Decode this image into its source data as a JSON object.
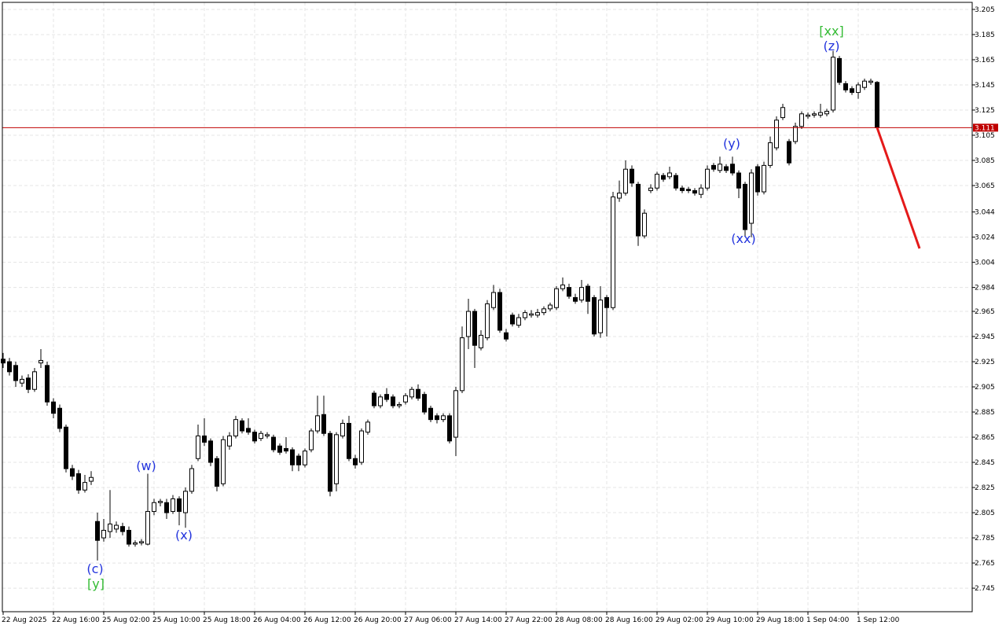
{
  "chart_data": {
    "type": "candlestick",
    "categories": [
      "22 Aug 2025",
      null,
      null,
      null,
      null,
      null,
      null,
      null,
      "22 Aug 16:00",
      null,
      null,
      null,
      null,
      null,
      null,
      null,
      "25 Aug 02:00",
      null,
      null,
      null,
      null,
      null,
      null,
      null,
      "25 Aug 10:00",
      null,
      null,
      null,
      null,
      null,
      null,
      null,
      "25 Aug 18:00",
      null,
      null,
      null,
      null,
      null,
      null,
      null,
      "26 Aug 04:00",
      null,
      null,
      null,
      null,
      null,
      null,
      null,
      "26 Aug 12:00",
      null,
      null,
      null,
      null,
      null,
      null,
      null,
      "26 Aug 20:00",
      null,
      null,
      null,
      null,
      null,
      null,
      null,
      "27 Aug 06:00",
      null,
      null,
      null,
      null,
      null,
      null,
      null,
      "27 Aug 14:00",
      null,
      null,
      null,
      null,
      null,
      null,
      null,
      "27 Aug 22:00",
      null,
      null,
      null,
      null,
      null,
      null,
      null,
      "28 Aug 08:00",
      null,
      null,
      null,
      null,
      null,
      null,
      null,
      "28 Aug 16:00",
      null,
      null,
      null,
      null,
      null,
      null,
      null,
      "29 Aug 02:00",
      null,
      null,
      null,
      null,
      null,
      null,
      null,
      "29 Aug 10:00",
      null,
      null,
      null,
      null,
      null,
      null,
      null,
      "29 Aug 18:00",
      null,
      null,
      null,
      null,
      null,
      null,
      null,
      "1 Sep 04:00",
      null,
      null,
      null,
      null,
      null,
      null,
      null,
      "1 Sep 12:00",
      null,
      null,
      null
    ],
    "open": [
      2.927,
      2.925,
      2.922,
      2.908,
      2.912,
      2.903,
      2.924,
      2.922,
      2.893,
      2.888,
      2.873,
      2.84,
      2.836,
      2.823,
      2.83,
      2.798,
      2.785,
      2.79,
      2.792,
      2.794,
      2.791,
      2.78,
      2.781,
      2.78,
      2.806,
      2.813,
      2.813,
      2.806,
      2.816,
      2.805,
      2.822,
      2.848,
      2.866,
      2.862,
      2.848,
      2.828,
      2.858,
      2.866,
      2.878,
      2.872,
      2.869,
      2.864,
      2.866,
      2.865,
      2.858,
      2.856,
      2.855,
      2.85,
      2.843,
      2.855,
      2.87,
      2.883,
      2.868,
      2.828,
      2.866,
      2.876,
      2.848,
      2.845,
      2.869,
      2.9,
      2.89,
      2.899,
      2.897,
      2.89,
      2.893,
      2.897,
      2.903,
      2.899,
      2.888,
      2.882,
      2.879,
      2.882,
      2.865,
      2.902,
      2.945,
      2.965,
      2.936,
      2.944,
      2.968,
      2.98,
      2.948,
      2.962,
      2.954,
      2.96,
      2.962,
      2.962,
      2.964,
      2.967,
      2.968,
      2.983,
      2.984,
      2.976,
      2.974,
      2.985,
      2.976,
      2.948,
      2.976,
      2.968,
      3.055,
      3.059,
      3.078,
      3.066,
      3.025,
      3.061,
      3.063,
      3.073,
      3.072,
      3.073,
      3.063,
      3.062,
      3.061,
      3.058,
      3.063,
      3.081,
      3.077,
      3.08,
      3.082,
      3.075,
      3.066,
      3.035,
      3.08,
      3.06,
      3.081,
      3.095,
      3.119,
      3.1,
      3.1,
      3.112,
      3.12,
      3.121,
      3.121,
      3.122,
      3.125,
      3.166,
      3.146,
      3.142,
      3.139,
      3.143,
      3.147,
      3.147
    ],
    "high": [
      2.932,
      2.928,
      2.925,
      2.914,
      2.915,
      2.92,
      2.935,
      2.925,
      2.896,
      2.891,
      2.875,
      2.843,
      2.839,
      2.835,
      2.838,
      2.805,
      2.8,
      2.823,
      2.798,
      2.797,
      2.794,
      2.783,
      2.784,
      2.836,
      2.816,
      2.816,
      2.816,
      2.819,
      2.818,
      2.825,
      2.843,
      2.875,
      2.88,
      2.864,
      2.85,
      2.866,
      2.869,
      2.882,
      2.88,
      2.88,
      2.871,
      2.87,
      2.869,
      2.867,
      2.86,
      2.865,
      2.857,
      2.852,
      2.856,
      2.872,
      2.898,
      2.898,
      2.87,
      2.869,
      2.879,
      2.882,
      2.851,
      2.872,
      2.879,
      2.902,
      2.899,
      2.904,
      2.899,
      2.893,
      2.9,
      2.905,
      2.907,
      2.901,
      2.89,
      2.884,
      2.884,
      2.884,
      2.905,
      2.953,
      2.975,
      2.967,
      2.95,
      2.974,
      2.986,
      2.983,
      2.951,
      2.964,
      2.963,
      2.966,
      2.966,
      2.967,
      2.969,
      2.972,
      2.985,
      2.992,
      2.987,
      2.979,
      2.99,
      2.987,
      2.978,
      2.985,
      2.978,
      3.06,
      3.069,
      3.085,
      3.081,
      3.068,
      3.046,
      3.066,
      3.076,
      3.075,
      3.08,
      3.075,
      3.065,
      3.064,
      3.063,
      3.066,
      3.081,
      3.083,
      3.088,
      3.082,
      3.088,
      3.077,
      3.068,
      3.078,
      3.082,
      3.084,
      3.104,
      3.12,
      3.13,
      3.102,
      3.115,
      3.124,
      3.123,
      3.124,
      3.13,
      3.126,
      3.172,
      3.168,
      3.148,
      3.144,
      3.147,
      3.15,
      3.15,
      3.148
    ],
    "low": [
      2.92,
      2.914,
      2.905,
      2.905,
      2.9,
      2.901,
      2.92,
      2.89,
      2.88,
      2.869,
      2.837,
      2.831,
      2.82,
      2.821,
      2.827,
      2.767,
      2.782,
      2.785,
      2.789,
      2.787,
      2.778,
      2.778,
      2.779,
      2.779,
      2.803,
      2.81,
      2.8,
      2.804,
      2.795,
      2.793,
      2.82,
      2.846,
      2.858,
      2.842,
      2.822,
      2.826,
      2.855,
      2.864,
      2.868,
      2.867,
      2.86,
      2.862,
      2.864,
      2.853,
      2.851,
      2.852,
      2.838,
      2.838,
      2.841,
      2.853,
      2.868,
      2.866,
      2.818,
      2.822,
      2.864,
      2.846,
      2.84,
      2.843,
      2.867,
      2.888,
      2.888,
      2.893,
      2.888,
      2.888,
      2.891,
      2.895,
      2.894,
      2.883,
      2.877,
      2.876,
      2.877,
      2.86,
      2.85,
      2.9,
      2.935,
      2.92,
      2.934,
      2.942,
      2.966,
      2.948,
      2.941,
      2.953,
      2.952,
      2.958,
      2.96,
      2.96,
      2.962,
      2.965,
      2.966,
      2.981,
      2.975,
      2.971,
      2.972,
      2.963,
      2.945,
      2.944,
      2.945,
      2.966,
      3.052,
      3.057,
      3.064,
      3.017,
      3.023,
      3.059,
      3.061,
      3.068,
      3.07,
      3.061,
      3.059,
      3.059,
      3.057,
      3.055,
      3.061,
      3.076,
      3.075,
      3.075,
      3.073,
      3.055,
      3.025,
      3.024,
      3.057,
      3.058,
      3.079,
      3.093,
      3.117,
      3.081,
      3.098,
      3.11,
      3.118,
      3.119,
      3.119,
      3.12,
      3.123,
      3.145,
      3.139,
      3.137,
      3.134,
      3.141,
      3.145,
      3.11
    ],
    "close": [
      2.924,
      2.917,
      2.91,
      2.911,
      2.903,
      2.917,
      2.926,
      2.893,
      2.884,
      2.872,
      2.84,
      2.834,
      2.823,
      2.829,
      2.833,
      2.783,
      2.791,
      2.796,
      2.795,
      2.79,
      2.78,
      2.781,
      2.782,
      2.806,
      2.813,
      2.814,
      2.805,
      2.816,
      2.806,
      2.822,
      2.84,
      2.866,
      2.861,
      2.845,
      2.826,
      2.863,
      2.866,
      2.879,
      2.87,
      2.869,
      2.862,
      2.868,
      2.867,
      2.855,
      2.853,
      2.854,
      2.843,
      2.843,
      2.854,
      2.87,
      2.882,
      2.868,
      2.822,
      2.867,
      2.876,
      2.848,
      2.843,
      2.87,
      2.877,
      2.89,
      2.897,
      2.895,
      2.89,
      2.891,
      2.898,
      2.903,
      2.896,
      2.885,
      2.879,
      2.879,
      2.882,
      2.862,
      2.902,
      2.944,
      2.965,
      2.938,
      2.946,
      2.971,
      2.98,
      2.95,
      2.943,
      2.955,
      2.96,
      2.964,
      2.963,
      2.964,
      2.967,
      2.97,
      2.983,
      2.986,
      2.977,
      2.973,
      2.984,
      2.973,
      2.947,
      2.974,
      2.968,
      3.056,
      3.059,
      3.078,
      3.067,
      3.025,
      3.043,
      3.063,
      3.074,
      3.07,
      3.075,
      3.063,
      3.061,
      3.061,
      3.059,
      3.063,
      3.078,
      3.078,
      3.082,
      3.077,
      3.075,
      3.063,
      3.03,
      3.075,
      3.06,
      3.081,
      3.099,
      3.117,
      3.127,
      3.083,
      3.112,
      3.122,
      3.121,
      3.122,
      3.123,
      3.124,
      3.167,
      3.147,
      3.141,
      3.139,
      3.145,
      3.148,
      3.148,
      3.111
    ],
    "ylim": [
      2.7263,
      3.2106
    ],
    "yticks": [
      3.205,
      3.185,
      3.165,
      3.145,
      3.125,
      3.105,
      3.085,
      3.065,
      3.044,
      3.024,
      3.004,
      2.984,
      2.965,
      2.945,
      2.925,
      2.905,
      2.885,
      2.865,
      2.845,
      2.825,
      2.805,
      2.785,
      2.765,
      2.745
    ],
    "grid": true,
    "last_price": 3.111,
    "last_price_color": "#c00000",
    "forecast": {
      "color": "#e41a1a",
      "values": [
        3.111,
        3.015
      ]
    },
    "annotations": [
      {
        "text": "(c)",
        "color": "#2233dd"
      },
      {
        "text": "[y]",
        "color": "#33bb33"
      },
      {
        "text": "(w)",
        "color": "#2233dd"
      },
      {
        "text": "(x)",
        "color": "#2233dd"
      },
      {
        "text": "(y)",
        "color": "#2233dd"
      },
      {
        "text": "(xx)",
        "color": "#2233dd"
      },
      {
        "text": "[xx]",
        "color": "#33bb33"
      },
      {
        "text": "(z)",
        "color": "#2233dd"
      }
    ]
  }
}
